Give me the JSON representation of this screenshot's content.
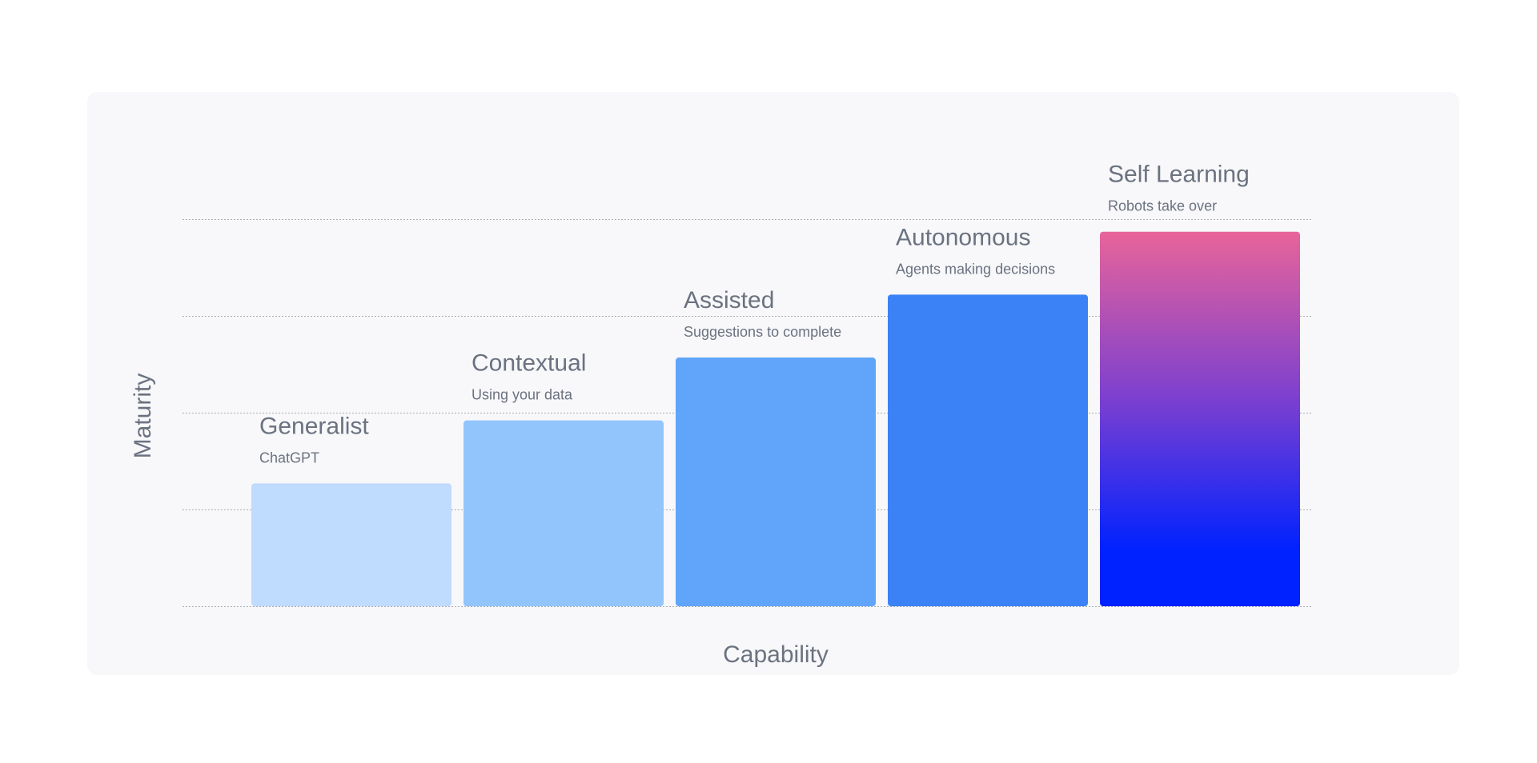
{
  "chart_data": {
    "type": "bar",
    "categories": [
      "Generalist",
      "Contextual",
      "Assisted",
      "Autonomous",
      "Self Learning"
    ],
    "subtitles": [
      "ChatGPT",
      "Using your data",
      "Suggestions to complete",
      "Agents making decisions",
      "Robots take over"
    ],
    "values": [
      1.27,
      1.92,
      2.57,
      3.22,
      3.87
    ],
    "xlabel": "Capability",
    "ylabel": "Maturity",
    "ylim": [
      0,
      4
    ],
    "grid": true,
    "legend": "none"
  },
  "colors": {
    "card_background": "#f8f8fa",
    "text": "#6b7280",
    "gridline": "#a9acb4",
    "bars": [
      "#bfdbfe",
      "#93c5fd",
      "#60a5fa",
      "#3b82f6"
    ],
    "highlight_gradient_top": "#e8649a",
    "highlight_gradient_bottom": "#0022ff",
    "highlight_title_start": "#1a2df0",
    "highlight_title_end": "#b04fd0"
  }
}
